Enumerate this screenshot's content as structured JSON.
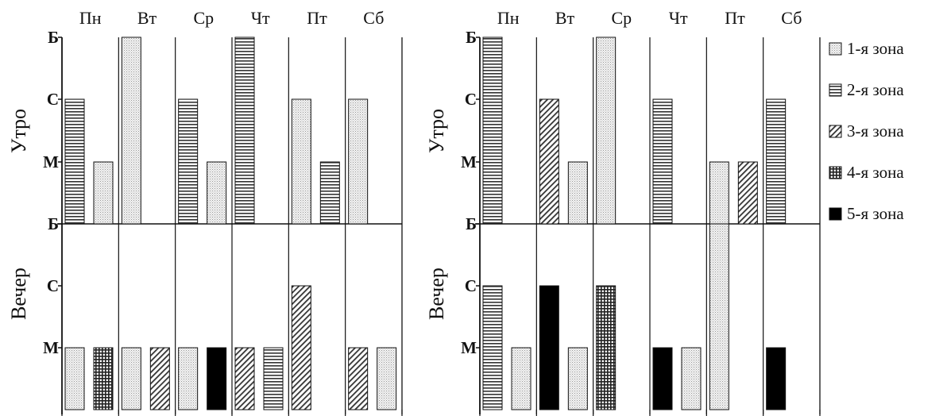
{
  "chart_data": {
    "type": "bar",
    "days": [
      "Пн",
      "Вт",
      "Ср",
      "Чт",
      "Пт",
      "Сб"
    ],
    "levels": [
      "М",
      "С",
      "Б"
    ],
    "level_values": {
      "М": 1,
      "С": 2,
      "Б": 3
    },
    "row_labels": [
      "Утро",
      "Вечер"
    ],
    "zones": [
      {
        "name": "1-я зона",
        "pattern": "dots"
      },
      {
        "name": "2-я зона",
        "pattern": "hlines"
      },
      {
        "name": "3-я зона",
        "pattern": "diag"
      },
      {
        "name": "4-я зона",
        "pattern": "grid"
      },
      {
        "name": "5-я зона",
        "pattern": "solid"
      }
    ],
    "panels": [
      {
        "morning": [
          [
            {
              "zone": 2,
              "value": 2
            },
            {
              "zone": 1,
              "value": 1
            }
          ],
          [
            {
              "zone": 1,
              "value": 3
            }
          ],
          [
            {
              "zone": 2,
              "value": 2
            },
            {
              "zone": 1,
              "value": 1
            }
          ],
          [
            {
              "zone": 2,
              "value": 3
            }
          ],
          [
            {
              "zone": 1,
              "value": 2
            },
            {
              "zone": 2,
              "value": 1
            }
          ],
          [
            {
              "zone": 1,
              "value": 2
            }
          ]
        ],
        "evening": [
          [
            {
              "zone": 1,
              "value": 1
            },
            {
              "zone": 4,
              "value": 1
            }
          ],
          [
            {
              "zone": 1,
              "value": 1
            },
            {
              "zone": 3,
              "value": 1
            }
          ],
          [
            {
              "zone": 1,
              "value": 1
            },
            {
              "zone": 5,
              "value": 1
            }
          ],
          [
            {
              "zone": 3,
              "value": 1
            },
            {
              "zone": 2,
              "value": 1
            }
          ],
          [
            {
              "zone": 3,
              "value": 2
            }
          ],
          [
            {
              "zone": 3,
              "value": 1
            },
            {
              "zone": 1,
              "value": 1
            }
          ]
        ]
      },
      {
        "morning": [
          [
            {
              "zone": 2,
              "value": 3
            }
          ],
          [
            {
              "zone": 3,
              "value": 2
            },
            {
              "zone": 1,
              "value": 1
            }
          ],
          [
            {
              "zone": 1,
              "value": 3
            }
          ],
          [
            {
              "zone": 2,
              "value": 2
            }
          ],
          [
            {
              "zone": 1,
              "value": 1
            },
            {
              "zone": 3,
              "value": 1
            }
          ],
          [
            {
              "zone": 2,
              "value": 2
            }
          ]
        ],
        "evening": [
          [
            {
              "zone": 2,
              "value": 2
            },
            {
              "zone": 1,
              "value": 1
            }
          ],
          [
            {
              "zone": 5,
              "value": 2
            },
            {
              "zone": 1,
              "value": 1
            }
          ],
          [
            {
              "zone": 4,
              "value": 2
            }
          ],
          [
            {
              "zone": 5,
              "value": 1
            },
            {
              "zone": 1,
              "value": 1
            }
          ],
          [
            {
              "zone": 1,
              "value": 3
            }
          ],
          [
            {
              "zone": 5,
              "value": 1
            }
          ]
        ]
      }
    ]
  }
}
